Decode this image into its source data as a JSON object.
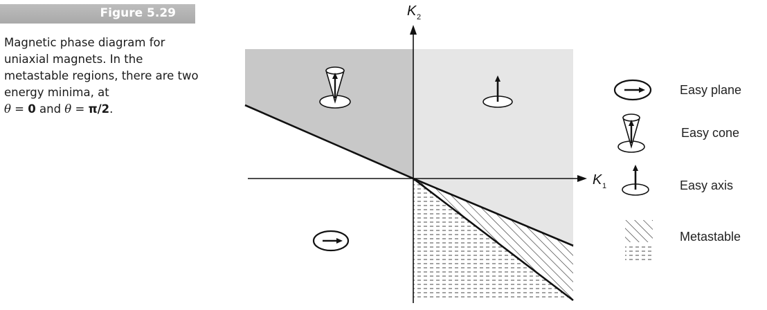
{
  "figure": {
    "label": "Figure 5.29",
    "caption_prefix": "Magnetic phase diagram for uniaxial magnets. In the metastable regions, there are two energy minima, at",
    "caption_theta1": "θ",
    "caption_eq1": " = ",
    "caption_val1": "0",
    "caption_and": " and ",
    "caption_theta2": "θ",
    "caption_eq2": " = ",
    "caption_val2": "π/2",
    "caption_end": "."
  },
  "axes": {
    "x_label": "K",
    "x_sub": "1",
    "y_label": "K",
    "y_sub": "2"
  },
  "legend": [
    {
      "icon": "easy-plane-icon",
      "label": "Easy plane"
    },
    {
      "icon": "easy-cone-icon",
      "label": "Easy cone"
    },
    {
      "icon": "easy-axis-icon",
      "label": "Easy axis"
    },
    {
      "icon": "metastable-hatch-icon",
      "label": "Metastable"
    }
  ],
  "colors": {
    "dark_region": "#c8c8c8",
    "light_region": "#e6e6e6",
    "line": "#111111"
  }
}
